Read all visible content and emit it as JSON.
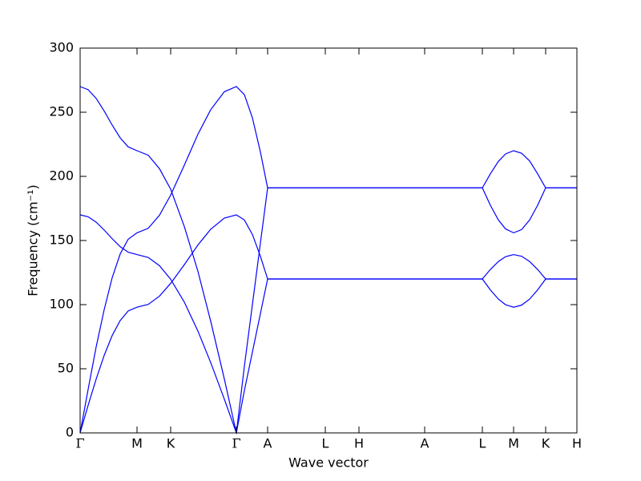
{
  "chart_data": {
    "type": "line",
    "xlabel": "Wave vector",
    "ylabel": "Frequency (cm⁻¹)",
    "xlim": [
      0,
      620
    ],
    "ylim": [
      0,
      300
    ],
    "yticks": [
      0,
      50,
      100,
      150,
      200,
      250,
      300
    ],
    "xticks": [
      {
        "value": 0,
        "label": "Γ"
      },
      {
        "value": 71,
        "label": "M"
      },
      {
        "value": 113,
        "label": "K"
      },
      {
        "value": 195,
        "label": "Γ"
      },
      {
        "value": 234,
        "label": "A"
      },
      {
        "value": 306,
        "label": "L"
      },
      {
        "value": 348,
        "label": "H"
      },
      {
        "value": 430,
        "label": "A"
      },
      {
        "value": 502,
        "label": "L"
      },
      {
        "value": 541,
        "label": "M"
      },
      {
        "value": 581,
        "label": "K"
      },
      {
        "value": 620,
        "label": "H"
      }
    ],
    "x": [
      0,
      10,
      20,
      30,
      40,
      50,
      60,
      71,
      85,
      99,
      113,
      130,
      147,
      163,
      180,
      195,
      205,
      215,
      225,
      234,
      306,
      348,
      430,
      502,
      512,
      522,
      531,
      541,
      551,
      561,
      571,
      581,
      620
    ],
    "series": [
      {
        "color": "#0000ff",
        "values": [
          270,
          267.6,
          260.8,
          251,
          240,
          230,
          223,
          220,
          216.5,
          206,
          190,
          161,
          126,
          87,
          42,
          0,
          52,
          100,
          148,
          191,
          191,
          191,
          191,
          191,
          202,
          211.7,
          217.5,
          220,
          218,
          212,
          202,
          191,
          191
        ]
      },
      {
        "color": "#0000ff",
        "values": [
          0,
          34,
          67,
          96,
          121,
          139.5,
          151,
          156,
          159.5,
          169.7,
          185.4,
          208.7,
          232.8,
          252,
          266,
          270,
          263.7,
          245.7,
          219,
          191,
          191,
          191,
          191,
          191,
          177.5,
          166,
          159,
          156,
          158.5,
          166,
          177.5,
          191,
          191
        ]
      },
      {
        "color": "#0000ff",
        "values": [
          170,
          168.5,
          164.3,
          158.2,
          151.4,
          145.2,
          140.9,
          139,
          136.8,
          130.4,
          119.8,
          102,
          79.4,
          54.8,
          26.3,
          0,
          33,
          63,
          93,
          120,
          120,
          120,
          120,
          120,
          127.4,
          133.6,
          137.4,
          139,
          137.7,
          133.6,
          127.4,
          120,
          120
        ]
      },
      {
        "color": "#0000ff",
        "values": [
          0,
          21.5,
          41.9,
          60.4,
          75.9,
          87.6,
          95.1,
          98,
          100.2,
          106.6,
          116.6,
          131.1,
          146.5,
          158.8,
          167.5,
          170,
          166,
          154.7,
          137.7,
          120,
          120,
          120,
          120,
          120,
          111.5,
          104.3,
          99.9,
          98,
          99.6,
          104.3,
          111.5,
          120,
          120
        ]
      }
    ]
  }
}
